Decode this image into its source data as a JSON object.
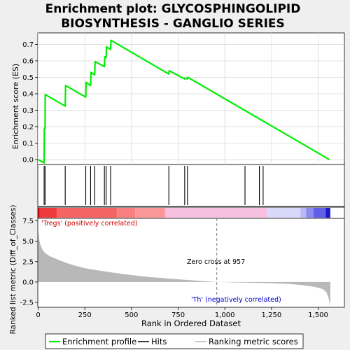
{
  "chart_data": {
    "type": "line",
    "title_line1": "Enrichment plot: GLYCOSPHINGOLIPID",
    "title_line2": "BIOSYNTHESIS - GANGLIO SERIES",
    "es_panel": {
      "ylabel": "Enrichment score (ES)",
      "ylim": [
        -0.03,
        0.77
      ],
      "yticks": [
        0.0,
        0.1,
        0.2,
        0.3,
        0.4,
        0.5,
        0.6,
        0.7
      ],
      "ytick_labels": [
        "0.0",
        "0.1",
        "0.2",
        "0.3",
        "0.4",
        "0.5",
        "0.6",
        "0.7"
      ],
      "curve": [
        [
          0,
          0.0
        ],
        [
          32,
          -0.02
        ],
        [
          33,
          0.19
        ],
        [
          37,
          0.19
        ],
        [
          38,
          0.395
        ],
        [
          145,
          0.325
        ],
        [
          147,
          0.45
        ],
        [
          255,
          0.38
        ],
        [
          257,
          0.47
        ],
        [
          281,
          0.45
        ],
        [
          283,
          0.53
        ],
        [
          303,
          0.515
        ],
        [
          305,
          0.595
        ],
        [
          355,
          0.565
        ],
        [
          357,
          0.625
        ],
        [
          364,
          0.62
        ],
        [
          366,
          0.685
        ],
        [
          388,
          0.67
        ],
        [
          390,
          0.725
        ],
        [
          700,
          0.52
        ],
        [
          702,
          0.54
        ],
        [
          785,
          0.49
        ],
        [
          787,
          0.495
        ],
        [
          800,
          0.49
        ],
        [
          802,
          0.5
        ],
        [
          1560,
          0.0
        ]
      ]
    },
    "hits": [
      32,
      37,
      145,
      255,
      281,
      303,
      355,
      364,
      388,
      700,
      785,
      800,
      1108,
      1185,
      1205
    ],
    "ranking_panel": {
      "ylabel": "Ranked list metric (Diff_of_Classes)",
      "xlabel": "Rank in Ordered Dataset",
      "ylim": [
        -3.1,
        7.8
      ],
      "yticks": [
        -2.5,
        0.0,
        2.5,
        5.0,
        7.5
      ],
      "ytick_labels": [
        "-2.5",
        "0.0",
        "2.5",
        "5.0",
        "7.5"
      ],
      "xlim": [
        0,
        1640
      ],
      "xticks": [
        0,
        250,
        500,
        750,
        1000,
        1250,
        1500
      ],
      "xtick_labels": [
        "0",
        "250",
        "500",
        "750",
        "1,000",
        "1,250",
        "1,500"
      ],
      "profile": [
        [
          0,
          6.3
        ],
        [
          5,
          5.3
        ],
        [
          10,
          4.7
        ],
        [
          20,
          4.1
        ],
        [
          35,
          3.6
        ],
        [
          60,
          3.2
        ],
        [
          100,
          2.8
        ],
        [
          150,
          2.35
        ],
        [
          200,
          2.0
        ],
        [
          250,
          1.7
        ],
        [
          300,
          1.5
        ],
        [
          400,
          1.15
        ],
        [
          500,
          0.85
        ],
        [
          600,
          0.6
        ],
        [
          700,
          0.42
        ],
        [
          800,
          0.25
        ],
        [
          900,
          0.1
        ],
        [
          957,
          0.0
        ],
        [
          1050,
          -0.05
        ],
        [
          1150,
          -0.1
        ],
        [
          1250,
          -0.15
        ],
        [
          1350,
          -0.25
        ],
        [
          1420,
          -0.4
        ],
        [
          1470,
          -0.55
        ],
        [
          1510,
          -0.75
        ],
        [
          1530,
          -0.95
        ],
        [
          1545,
          -1.3
        ],
        [
          1555,
          -1.9
        ],
        [
          1562,
          -2.6
        ],
        [
          1565,
          -3.0
        ]
      ],
      "zero_cross_label": "Zero cross at 957",
      "zero_cross_rank": 957,
      "pos_label": "'Tregs' (positively correlated)",
      "neg_label": "'Th' (negatively correlated)"
    },
    "n_genes": 1565,
    "legend": {
      "entries": [
        "Enrichment profile",
        "Hits",
        "Ranking metric scores"
      ],
      "placement": "bottom"
    },
    "colors": {
      "curve": "#00ee00",
      "hits": "#000000",
      "profile_fill": "#b8b8b8",
      "pos_label": "#cc0000",
      "neg_label": "#0000cc",
      "zero_line": "#777777"
    },
    "heat_band": [
      {
        "from": 0,
        "to": 8,
        "color": "#e60000"
      },
      {
        "from": 8,
        "to": 100,
        "color": "#ee3a3a"
      },
      {
        "from": 100,
        "to": 420,
        "color": "#f56464"
      },
      {
        "from": 420,
        "to": 520,
        "color": "#f88080"
      },
      {
        "from": 520,
        "to": 680,
        "color": "#fa9898"
      },
      {
        "from": 680,
        "to": 1225,
        "color": "#f7c0de"
      },
      {
        "from": 1225,
        "to": 1405,
        "color": "#d8d8fa"
      },
      {
        "from": 1405,
        "to": 1435,
        "color": "#b8b8f4"
      },
      {
        "from": 1435,
        "to": 1475,
        "color": "#8c8cf0"
      },
      {
        "from": 1475,
        "to": 1540,
        "color": "#6060e6"
      },
      {
        "from": 1540,
        "to": 1565,
        "color": "#1a1acc"
      }
    ]
  }
}
